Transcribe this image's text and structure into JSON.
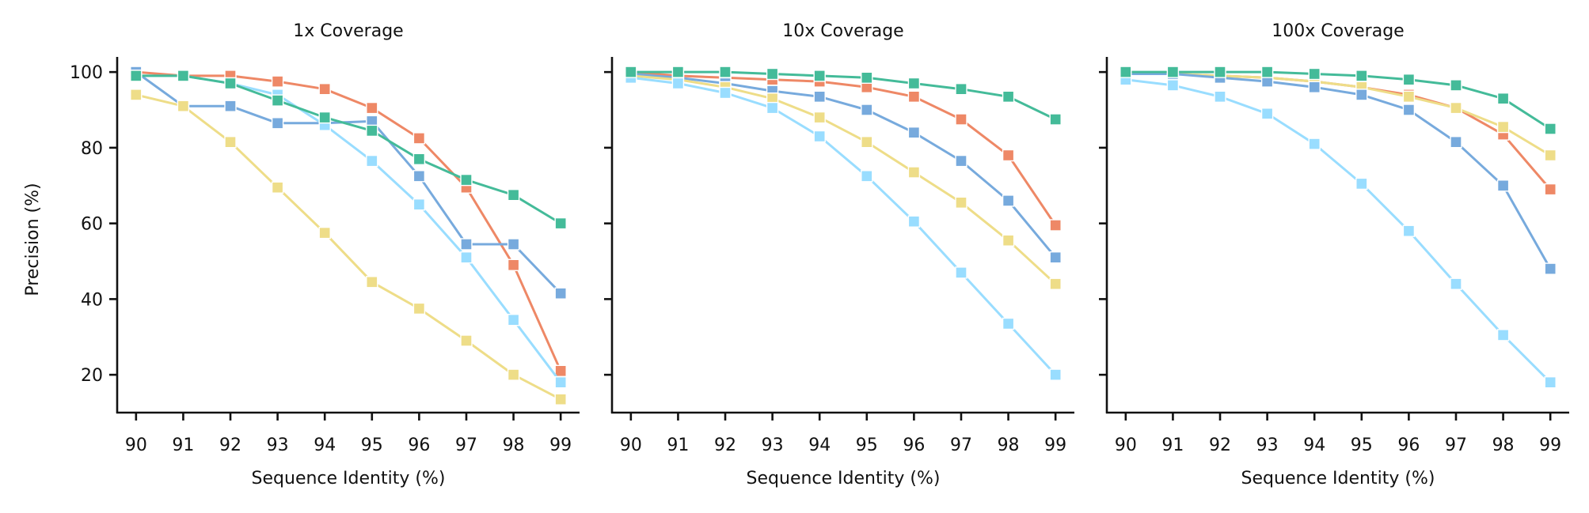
{
  "chart_data": {
    "type": "line",
    "ylabel": "Precision (%)",
    "xlabel": "Sequence Identity (%)",
    "x": [
      90,
      91,
      92,
      93,
      94,
      95,
      96,
      97,
      98,
      99
    ],
    "xlim": [
      89.6,
      99.4
    ],
    "ylim": [
      10,
      104
    ],
    "yticks": [
      20,
      40,
      60,
      80,
      100
    ],
    "sharey": true,
    "marker": "square",
    "grid": false,
    "series_colors": [
      "#ee8866",
      "#77aadd",
      "#44bb99",
      "#eedd88",
      "#99ddff"
    ],
    "panels": [
      {
        "title": "1x Coverage",
        "series": [
          {
            "color": "#ee8866",
            "values": [
              100,
              99,
              99,
              97.5,
              95.5,
              90.5,
              82.5,
              69.5,
              49,
              21
            ]
          },
          {
            "color": "#77aadd",
            "values": [
              100,
              91,
              91,
              86.5,
              86.5,
              87,
              72.5,
              54.5,
              54.5,
              41.5
            ]
          },
          {
            "color": "#99ddff",
            "values": [
              99,
              99,
              97,
              94,
              86,
              76.5,
              65,
              51,
              34.5,
              18
            ]
          },
          {
            "color": "#eedd88",
            "values": [
              94,
              91,
              81.5,
              69.5,
              57.5,
              44.5,
              37.5,
              29,
              20,
              13.5
            ]
          },
          {
            "color": "#44bb99",
            "values": [
              99,
              99,
              97,
              92.5,
              88,
              84.5,
              77,
              71.5,
              67.5,
              60
            ]
          }
        ]
      },
      {
        "title": "10x Coverage",
        "series": [
          {
            "color": "#ee8866",
            "values": [
              100,
              99,
              98.5,
              98,
              97.5,
              96,
              93.5,
              87.5,
              78,
              59.5
            ]
          },
          {
            "color": "#77aadd",
            "values": [
              99.5,
              98.5,
              97,
              95,
              93.5,
              90,
              84,
              76.5,
              66,
              51
            ]
          },
          {
            "color": "#eedd88",
            "values": [
              99,
              98,
              96,
              93,
              88,
              81.5,
              73.5,
              65.5,
              55.5,
              44
            ]
          },
          {
            "color": "#99ddff",
            "values": [
              98.5,
              97,
              94.5,
              90.5,
              83,
              72.5,
              60.5,
              47,
              33.5,
              20
            ]
          },
          {
            "color": "#44bb99",
            "values": [
              100,
              100,
              100,
              99.5,
              99,
              98.5,
              97,
              95.5,
              93.5,
              87.5
            ]
          }
        ]
      },
      {
        "title": "100x Coverage",
        "series": [
          {
            "color": "#ee8866",
            "values": [
              99.5,
              99.5,
              99,
              98.5,
              97.5,
              96,
              94,
              90.5,
              83.5,
              69
            ]
          },
          {
            "color": "#eedd88",
            "values": [
              99.5,
              99.5,
              99,
              98.5,
              97.5,
              96,
              93.5,
              90.5,
              85.5,
              78
            ]
          },
          {
            "color": "#77aadd",
            "values": [
              99.5,
              99.5,
              98.5,
              97.5,
              96,
              94,
              90,
              81.5,
              70,
              48
            ]
          },
          {
            "color": "#99ddff",
            "values": [
              98,
              96.5,
              93.5,
              89,
              81,
              70.5,
              58,
              44,
              30.5,
              18
            ]
          },
          {
            "color": "#44bb99",
            "values": [
              100,
              100,
              100,
              100,
              99.5,
              99,
              98,
              96.5,
              93,
              85
            ]
          }
        ]
      }
    ]
  }
}
